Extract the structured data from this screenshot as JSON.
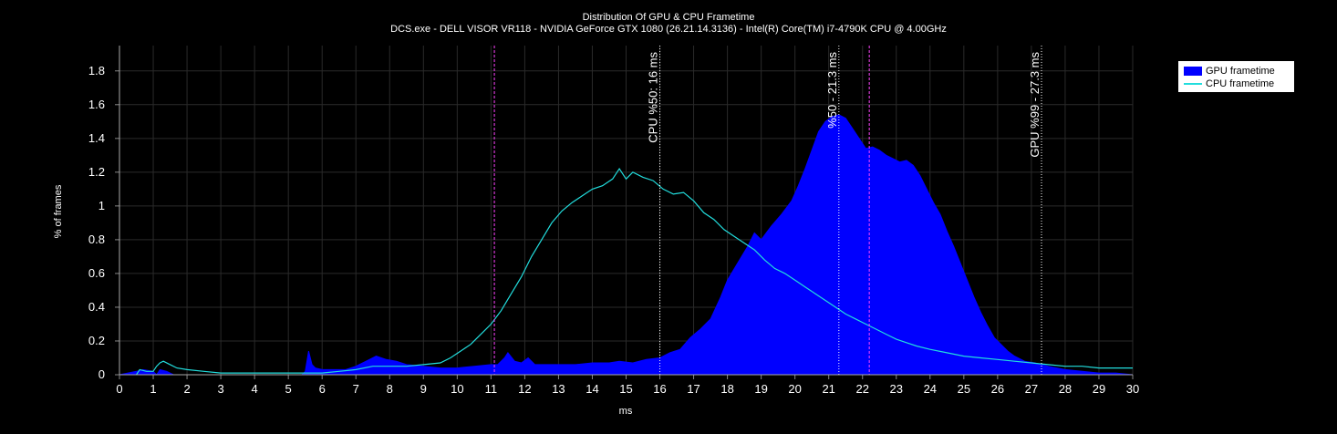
{
  "chart_data": {
    "type": "area",
    "title": "Distribution Of GPU & CPU Frametime",
    "subtitle": "DCS.exe - DELL VISOR VR118 - NVIDIA GeForce GTX 1080 (26.21.14.3136) - Intel(R) Core(TM) i7-4790K CPU @ 4.00GHz",
    "xlabel": "ms",
    "ylabel": "% of frames",
    "xlim": [
      0,
      30
    ],
    "ylim": [
      0,
      1.95
    ],
    "xticks": [
      "0",
      "1",
      "2",
      "3",
      "4",
      "5",
      "6",
      "7",
      "8",
      "9",
      "10",
      "11",
      "12",
      "13",
      "14",
      "15",
      "16",
      "17",
      "18",
      "19",
      "20",
      "21",
      "22",
      "23",
      "24",
      "25",
      "26",
      "27",
      "28",
      "29",
      "30"
    ],
    "yticks": [
      "0",
      "0.2",
      "0.4",
      "0.6",
      "0.8",
      "1",
      "1.2",
      "1.4",
      "1.6",
      "1.8"
    ],
    "grid": true,
    "legend_position": "top-right",
    "series": [
      {
        "name": "GPU frametime",
        "type": "area",
        "color": "#0000ff",
        "points": [
          [
            0,
            0
          ],
          [
            0.5,
            0.02
          ],
          [
            0.7,
            0.03
          ],
          [
            1.0,
            0.02
          ],
          [
            1.1,
            0
          ],
          [
            1.2,
            0.03
          ],
          [
            1.4,
            0.02
          ],
          [
            1.6,
            0
          ],
          [
            5.4,
            0
          ],
          [
            5.5,
            0.02
          ],
          [
            5.6,
            0.14
          ],
          [
            5.7,
            0.06
          ],
          [
            5.8,
            0.04
          ],
          [
            6.0,
            0.03
          ],
          [
            6.3,
            0.03
          ],
          [
            6.7,
            0.03
          ],
          [
            7.0,
            0.05
          ],
          [
            7.3,
            0.08
          ],
          [
            7.6,
            0.11
          ],
          [
            7.9,
            0.09
          ],
          [
            8.2,
            0.08
          ],
          [
            8.5,
            0.06
          ],
          [
            9.0,
            0.05
          ],
          [
            9.5,
            0.04
          ],
          [
            10.0,
            0.04
          ],
          [
            10.5,
            0.05
          ],
          [
            11.0,
            0.06
          ],
          [
            11.2,
            0.06
          ],
          [
            11.4,
            0.1
          ],
          [
            11.5,
            0.13
          ],
          [
            11.7,
            0.08
          ],
          [
            11.9,
            0.07
          ],
          [
            12.1,
            0.1
          ],
          [
            12.3,
            0.06
          ],
          [
            12.6,
            0.06
          ],
          [
            13.0,
            0.06
          ],
          [
            13.5,
            0.06
          ],
          [
            14.0,
            0.07
          ],
          [
            14.5,
            0.07
          ],
          [
            14.8,
            0.08
          ],
          [
            15.2,
            0.07
          ],
          [
            15.6,
            0.09
          ],
          [
            16.0,
            0.1
          ],
          [
            16.3,
            0.13
          ],
          [
            16.6,
            0.15
          ],
          [
            16.9,
            0.22
          ],
          [
            17.2,
            0.27
          ],
          [
            17.5,
            0.33
          ],
          [
            17.8,
            0.46
          ],
          [
            18.0,
            0.56
          ],
          [
            18.3,
            0.66
          ],
          [
            18.6,
            0.76
          ],
          [
            18.8,
            0.84
          ],
          [
            19.0,
            0.8
          ],
          [
            19.3,
            0.88
          ],
          [
            19.6,
            0.95
          ],
          [
            19.9,
            1.03
          ],
          [
            20.1,
            1.12
          ],
          [
            20.3,
            1.22
          ],
          [
            20.5,
            1.33
          ],
          [
            20.7,
            1.44
          ],
          [
            20.9,
            1.5
          ],
          [
            21.1,
            1.53
          ],
          [
            21.3,
            1.54
          ],
          [
            21.5,
            1.52
          ],
          [
            21.7,
            1.46
          ],
          [
            21.9,
            1.4
          ],
          [
            22.1,
            1.34
          ],
          [
            22.3,
            1.35
          ],
          [
            22.5,
            1.33
          ],
          [
            22.7,
            1.3
          ],
          [
            22.9,
            1.28
          ],
          [
            23.1,
            1.26
          ],
          [
            23.3,
            1.27
          ],
          [
            23.5,
            1.24
          ],
          [
            23.7,
            1.18
          ],
          [
            23.9,
            1.1
          ],
          [
            24.1,
            1.02
          ],
          [
            24.3,
            0.95
          ],
          [
            24.5,
            0.85
          ],
          [
            24.7,
            0.76
          ],
          [
            24.9,
            0.66
          ],
          [
            25.1,
            0.56
          ],
          [
            25.3,
            0.46
          ],
          [
            25.5,
            0.37
          ],
          [
            25.7,
            0.29
          ],
          [
            25.9,
            0.22
          ],
          [
            26.1,
            0.18
          ],
          [
            26.3,
            0.14
          ],
          [
            26.5,
            0.11
          ],
          [
            26.8,
            0.08
          ],
          [
            27.1,
            0.07
          ],
          [
            27.5,
            0.05
          ],
          [
            28.0,
            0.03
          ],
          [
            28.5,
            0.02
          ],
          [
            29.0,
            0.01
          ],
          [
            29.5,
            0.01
          ],
          [
            30.0,
            0
          ]
        ]
      },
      {
        "name": "CPU frametime",
        "type": "line",
        "color": "#22dddd",
        "points": [
          [
            0.5,
            0
          ],
          [
            0.6,
            0.03
          ],
          [
            0.8,
            0.02
          ],
          [
            1.0,
            0.02
          ],
          [
            1.1,
            0.05
          ],
          [
            1.2,
            0.07
          ],
          [
            1.3,
            0.08
          ],
          [
            1.5,
            0.06
          ],
          [
            1.7,
            0.04
          ],
          [
            2.0,
            0.03
          ],
          [
            2.5,
            0.02
          ],
          [
            3.0,
            0.01
          ],
          [
            4.0,
            0.01
          ],
          [
            5.0,
            0.01
          ],
          [
            6.0,
            0.01
          ],
          [
            6.5,
            0.02
          ],
          [
            7.0,
            0.03
          ],
          [
            7.5,
            0.05
          ],
          [
            8.0,
            0.05
          ],
          [
            8.5,
            0.05
          ],
          [
            9.0,
            0.06
          ],
          [
            9.5,
            0.07
          ],
          [
            9.8,
            0.1
          ],
          [
            10.1,
            0.14
          ],
          [
            10.4,
            0.18
          ],
          [
            10.7,
            0.24
          ],
          [
            11.0,
            0.3
          ],
          [
            11.3,
            0.38
          ],
          [
            11.6,
            0.48
          ],
          [
            11.9,
            0.58
          ],
          [
            12.2,
            0.7
          ],
          [
            12.5,
            0.8
          ],
          [
            12.8,
            0.9
          ],
          [
            13.1,
            0.97
          ],
          [
            13.4,
            1.02
          ],
          [
            13.7,
            1.06
          ],
          [
            14.0,
            1.1
          ],
          [
            14.3,
            1.12
          ],
          [
            14.6,
            1.16
          ],
          [
            14.8,
            1.22
          ],
          [
            15.0,
            1.16
          ],
          [
            15.2,
            1.2
          ],
          [
            15.5,
            1.17
          ],
          [
            15.8,
            1.15
          ],
          [
            16.1,
            1.1
          ],
          [
            16.4,
            1.07
          ],
          [
            16.7,
            1.08
          ],
          [
            17.0,
            1.03
          ],
          [
            17.3,
            0.96
          ],
          [
            17.6,
            0.92
          ],
          [
            17.9,
            0.86
          ],
          [
            18.2,
            0.82
          ],
          [
            18.5,
            0.78
          ],
          [
            18.8,
            0.74
          ],
          [
            19.1,
            0.68
          ],
          [
            19.4,
            0.63
          ],
          [
            19.7,
            0.6
          ],
          [
            20.0,
            0.56
          ],
          [
            20.3,
            0.52
          ],
          [
            20.6,
            0.48
          ],
          [
            20.9,
            0.44
          ],
          [
            21.2,
            0.4
          ],
          [
            21.5,
            0.36
          ],
          [
            21.8,
            0.33
          ],
          [
            22.1,
            0.3
          ],
          [
            22.4,
            0.27
          ],
          [
            22.7,
            0.24
          ],
          [
            23.0,
            0.21
          ],
          [
            23.3,
            0.19
          ],
          [
            23.6,
            0.17
          ],
          [
            24.0,
            0.15
          ],
          [
            24.5,
            0.13
          ],
          [
            25.0,
            0.11
          ],
          [
            25.5,
            0.1
          ],
          [
            26.0,
            0.09
          ],
          [
            26.5,
            0.08
          ],
          [
            27.0,
            0.07
          ],
          [
            27.5,
            0.06
          ],
          [
            28.0,
            0.05
          ],
          [
            28.5,
            0.05
          ],
          [
            29.0,
            0.04
          ],
          [
            29.5,
            0.04
          ],
          [
            30.0,
            0.04
          ]
        ]
      }
    ],
    "markers": [
      {
        "x": 11.1,
        "color": "#ff44ff",
        "style": "dashed",
        "label": ""
      },
      {
        "x": 16.0,
        "color": "#ffffff",
        "style": "dotted",
        "label": "CPU %50: 16 ms"
      },
      {
        "x": 21.3,
        "color": "#ffffff",
        "style": "dotted",
        "label": "%50 - 21.3 ms"
      },
      {
        "x": 22.2,
        "color": "#ff44ff",
        "style": "dashed",
        "label": ""
      },
      {
        "x": 27.3,
        "color": "#ffffff",
        "style": "dotted",
        "label": "GPU %99 - 27.3 ms"
      }
    ]
  },
  "legend": {
    "gpu_label": "GPU frametime",
    "cpu_label": "CPU frametime"
  }
}
